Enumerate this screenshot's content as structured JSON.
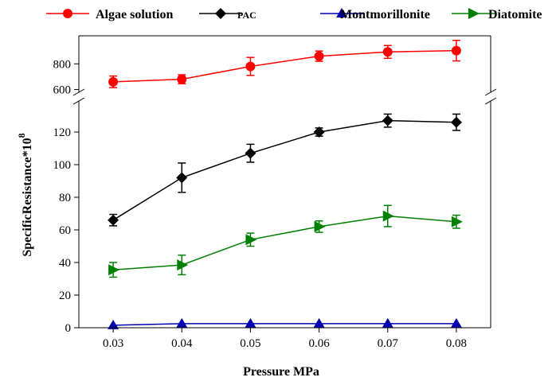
{
  "chart_data": {
    "type": "line",
    "xlabel": "Pressure MPa",
    "ylabel": "SpecificResistance*10",
    "ylabel_superscript": "8",
    "x": [
      0.03,
      0.04,
      0.05,
      0.06,
      0.07,
      0.08
    ],
    "x_tick_labels": [
      "0.03",
      "0.04",
      "0.05",
      "0.06",
      "0.07",
      "0.08"
    ],
    "y_ticks_lower": [
      0,
      20,
      40,
      60,
      80,
      100,
      120
    ],
    "y_ticks_upper": [
      600,
      800
    ],
    "ylim_lower": [
      0,
      140
    ],
    "ylim_upper": [
      560,
      1000
    ],
    "axis_break": true,
    "grid": false,
    "legend_position": "top",
    "series": [
      {
        "name": "Algae solution",
        "color": "#ff0000",
        "marker": "circle",
        "values": [
          660,
          680,
          780,
          860,
          893,
          903
        ],
        "errors": [
          45,
          35,
          70,
          40,
          50,
          80
        ]
      },
      {
        "name": "PAC",
        "color": "#000000",
        "marker": "diamond",
        "values": [
          66,
          92,
          107,
          120,
          127,
          126
        ],
        "errors": [
          3.5,
          9,
          5.5,
          2.5,
          4,
          5
        ]
      },
      {
        "name": "Montmorillonite",
        "color": "#0000b0",
        "marker": "triangle-up",
        "values": [
          1.5,
          2.5,
          2.5,
          2.5,
          2.5,
          2.5
        ],
        "errors": [
          0,
          0,
          0,
          0,
          0,
          0
        ]
      },
      {
        "name": "Diatomite",
        "color": "#008000",
        "marker": "triangle-right",
        "values": [
          35.5,
          38.5,
          54,
          62,
          68.5,
          65
        ],
        "errors": [
          4.5,
          6,
          4,
          3.5,
          6.5,
          4
        ]
      }
    ]
  }
}
